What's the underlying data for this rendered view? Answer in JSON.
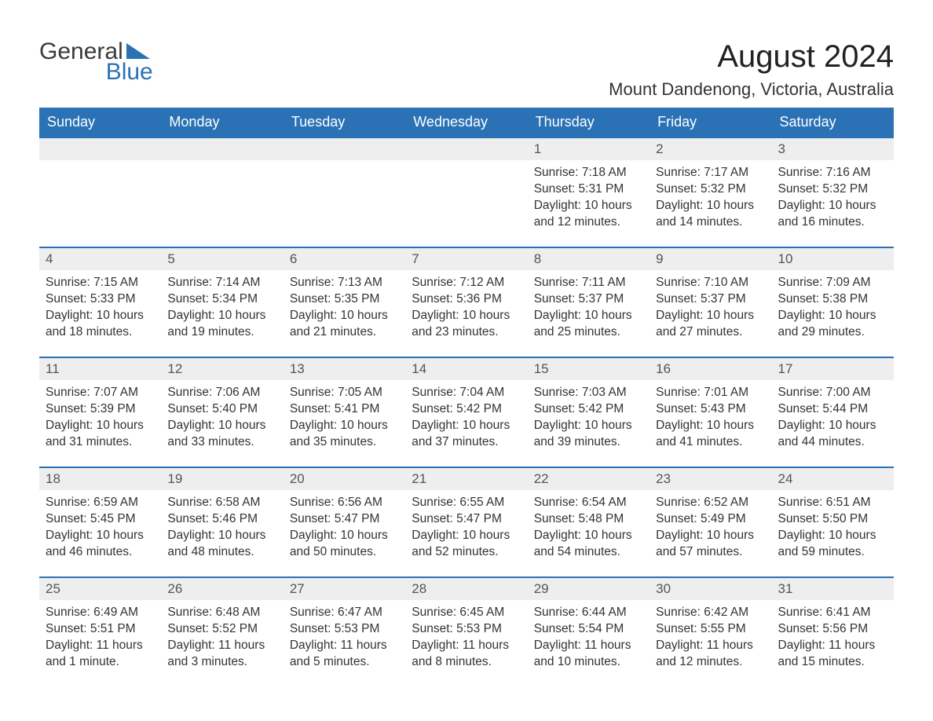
{
  "logo": {
    "text_general": "General",
    "text_blue": "Blue",
    "tri_color": "#2a72b5"
  },
  "header": {
    "month_title": "August 2024",
    "location": "Mount Dandenong, Victoria, Australia"
  },
  "colors": {
    "header_bg": "#2a72b5",
    "header_text": "#ffffff",
    "daynum_bg": "#eeeeee",
    "row_border": "#2a72b5",
    "page_bg": "#ffffff",
    "body_text": "#333333"
  },
  "weekdays": [
    "Sunday",
    "Monday",
    "Tuesday",
    "Wednesday",
    "Thursday",
    "Friday",
    "Saturday"
  ],
  "weeks": [
    [
      {
        "empty": true
      },
      {
        "empty": true
      },
      {
        "empty": true
      },
      {
        "empty": true
      },
      {
        "day": "1",
        "sunrise": "Sunrise: 7:18 AM",
        "sunset": "Sunset: 5:31 PM",
        "daylight": "Daylight: 10 hours and 12 minutes."
      },
      {
        "day": "2",
        "sunrise": "Sunrise: 7:17 AM",
        "sunset": "Sunset: 5:32 PM",
        "daylight": "Daylight: 10 hours and 14 minutes."
      },
      {
        "day": "3",
        "sunrise": "Sunrise: 7:16 AM",
        "sunset": "Sunset: 5:32 PM",
        "daylight": "Daylight: 10 hours and 16 minutes."
      }
    ],
    [
      {
        "day": "4",
        "sunrise": "Sunrise: 7:15 AM",
        "sunset": "Sunset: 5:33 PM",
        "daylight": "Daylight: 10 hours and 18 minutes."
      },
      {
        "day": "5",
        "sunrise": "Sunrise: 7:14 AM",
        "sunset": "Sunset: 5:34 PM",
        "daylight": "Daylight: 10 hours and 19 minutes."
      },
      {
        "day": "6",
        "sunrise": "Sunrise: 7:13 AM",
        "sunset": "Sunset: 5:35 PM",
        "daylight": "Daylight: 10 hours and 21 minutes."
      },
      {
        "day": "7",
        "sunrise": "Sunrise: 7:12 AM",
        "sunset": "Sunset: 5:36 PM",
        "daylight": "Daylight: 10 hours and 23 minutes."
      },
      {
        "day": "8",
        "sunrise": "Sunrise: 7:11 AM",
        "sunset": "Sunset: 5:37 PM",
        "daylight": "Daylight: 10 hours and 25 minutes."
      },
      {
        "day": "9",
        "sunrise": "Sunrise: 7:10 AM",
        "sunset": "Sunset: 5:37 PM",
        "daylight": "Daylight: 10 hours and 27 minutes."
      },
      {
        "day": "10",
        "sunrise": "Sunrise: 7:09 AM",
        "sunset": "Sunset: 5:38 PM",
        "daylight": "Daylight: 10 hours and 29 minutes."
      }
    ],
    [
      {
        "day": "11",
        "sunrise": "Sunrise: 7:07 AM",
        "sunset": "Sunset: 5:39 PM",
        "daylight": "Daylight: 10 hours and 31 minutes."
      },
      {
        "day": "12",
        "sunrise": "Sunrise: 7:06 AM",
        "sunset": "Sunset: 5:40 PM",
        "daylight": "Daylight: 10 hours and 33 minutes."
      },
      {
        "day": "13",
        "sunrise": "Sunrise: 7:05 AM",
        "sunset": "Sunset: 5:41 PM",
        "daylight": "Daylight: 10 hours and 35 minutes."
      },
      {
        "day": "14",
        "sunrise": "Sunrise: 7:04 AM",
        "sunset": "Sunset: 5:42 PM",
        "daylight": "Daylight: 10 hours and 37 minutes."
      },
      {
        "day": "15",
        "sunrise": "Sunrise: 7:03 AM",
        "sunset": "Sunset: 5:42 PM",
        "daylight": "Daylight: 10 hours and 39 minutes."
      },
      {
        "day": "16",
        "sunrise": "Sunrise: 7:01 AM",
        "sunset": "Sunset: 5:43 PM",
        "daylight": "Daylight: 10 hours and 41 minutes."
      },
      {
        "day": "17",
        "sunrise": "Sunrise: 7:00 AM",
        "sunset": "Sunset: 5:44 PM",
        "daylight": "Daylight: 10 hours and 44 minutes."
      }
    ],
    [
      {
        "day": "18",
        "sunrise": "Sunrise: 6:59 AM",
        "sunset": "Sunset: 5:45 PM",
        "daylight": "Daylight: 10 hours and 46 minutes."
      },
      {
        "day": "19",
        "sunrise": "Sunrise: 6:58 AM",
        "sunset": "Sunset: 5:46 PM",
        "daylight": "Daylight: 10 hours and 48 minutes."
      },
      {
        "day": "20",
        "sunrise": "Sunrise: 6:56 AM",
        "sunset": "Sunset: 5:47 PM",
        "daylight": "Daylight: 10 hours and 50 minutes."
      },
      {
        "day": "21",
        "sunrise": "Sunrise: 6:55 AM",
        "sunset": "Sunset: 5:47 PM",
        "daylight": "Daylight: 10 hours and 52 minutes."
      },
      {
        "day": "22",
        "sunrise": "Sunrise: 6:54 AM",
        "sunset": "Sunset: 5:48 PM",
        "daylight": "Daylight: 10 hours and 54 minutes."
      },
      {
        "day": "23",
        "sunrise": "Sunrise: 6:52 AM",
        "sunset": "Sunset: 5:49 PM",
        "daylight": "Daylight: 10 hours and 57 minutes."
      },
      {
        "day": "24",
        "sunrise": "Sunrise: 6:51 AM",
        "sunset": "Sunset: 5:50 PM",
        "daylight": "Daylight: 10 hours and 59 minutes."
      }
    ],
    [
      {
        "day": "25",
        "sunrise": "Sunrise: 6:49 AM",
        "sunset": "Sunset: 5:51 PM",
        "daylight": "Daylight: 11 hours and 1 minute."
      },
      {
        "day": "26",
        "sunrise": "Sunrise: 6:48 AM",
        "sunset": "Sunset: 5:52 PM",
        "daylight": "Daylight: 11 hours and 3 minutes."
      },
      {
        "day": "27",
        "sunrise": "Sunrise: 6:47 AM",
        "sunset": "Sunset: 5:53 PM",
        "daylight": "Daylight: 11 hours and 5 minutes."
      },
      {
        "day": "28",
        "sunrise": "Sunrise: 6:45 AM",
        "sunset": "Sunset: 5:53 PM",
        "daylight": "Daylight: 11 hours and 8 minutes."
      },
      {
        "day": "29",
        "sunrise": "Sunrise: 6:44 AM",
        "sunset": "Sunset: 5:54 PM",
        "daylight": "Daylight: 11 hours and 10 minutes."
      },
      {
        "day": "30",
        "sunrise": "Sunrise: 6:42 AM",
        "sunset": "Sunset: 5:55 PM",
        "daylight": "Daylight: 11 hours and 12 minutes."
      },
      {
        "day": "31",
        "sunrise": "Sunrise: 6:41 AM",
        "sunset": "Sunset: 5:56 PM",
        "daylight": "Daylight: 11 hours and 15 minutes."
      }
    ]
  ]
}
